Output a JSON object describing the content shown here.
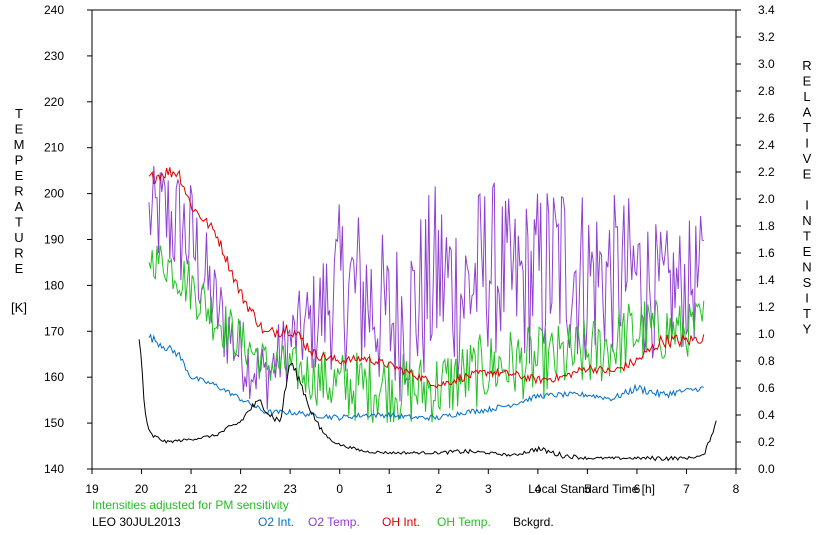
{
  "chart_data": {
    "type": "line",
    "x_ticks": [
      "19",
      "20",
      "21",
      "22",
      "23",
      "0",
      "1",
      "2",
      "3",
      "4",
      "5",
      "6",
      "7",
      "8"
    ],
    "xlim": [
      19,
      32
    ],
    "xlabel": "Local Standard Time [h]",
    "left_axis": {
      "label": "TEMPERATURE",
      "unit": "[K]",
      "ylim": [
        140,
        240
      ],
      "ticks": [
        140,
        150,
        160,
        170,
        180,
        190,
        200,
        210,
        220,
        230,
        240
      ]
    },
    "right_axis": {
      "label": "RELATIVE INTENSITY",
      "ylim": [
        0.0,
        3.4
      ],
      "ticks": [
        "0.0",
        "0.2",
        "0.4",
        "0.6",
        "0.8",
        "1.0",
        "1.2",
        "1.4",
        "1.6",
        "1.8",
        "2.0",
        "2.2",
        "2.4",
        "2.6",
        "2.8",
        "3.0",
        "3.2",
        "3.4"
      ]
    },
    "note": "Intensities adjusted for PM sensitivity",
    "station": "LEO 30JUL2013",
    "legend": [
      {
        "name": "O2 Int.",
        "color": "#0070c8"
      },
      {
        "name": "O2 Temp.",
        "color": "#9040d0"
      },
      {
        "name": "OH Int.",
        "color": "#dd0000"
      },
      {
        "name": "OH Temp.",
        "color": "#22c022"
      },
      {
        "name": "Bckgrd.",
        "color": "#000000"
      }
    ],
    "series": [
      {
        "name": "O2 Temp.",
        "color": "#9040d0",
        "axis": "left",
        "noisy": true,
        "x": [
          20.15,
          20.5,
          21.0,
          21.5,
          22.0,
          22.5,
          23.0,
          23.5,
          24.0,
          24.5,
          25.0,
          25.5,
          26.0,
          26.5,
          27.0,
          27.5,
          28.0,
          28.5,
          29.0,
          29.5,
          30.0,
          30.5,
          31.0,
          31.35
        ],
        "y": [
          195,
          195,
          190,
          175,
          165,
          160,
          168,
          172,
          180,
          178,
          172,
          175,
          182,
          178,
          185,
          180,
          182,
          185,
          182,
          182,
          182,
          178,
          180,
          182
        ],
        "amp": [
          10,
          14,
          14,
          10,
          8,
          8,
          8,
          12,
          18,
          20,
          18,
          20,
          22,
          20,
          20,
          18,
          20,
          22,
          20,
          18,
          18,
          14,
          14,
          14
        ]
      },
      {
        "name": "OH Temp.",
        "color": "#22c022",
        "axis": "left",
        "noisy": true,
        "x": [
          20.15,
          20.5,
          21.0,
          21.5,
          22.0,
          22.5,
          23.0,
          23.5,
          24.0,
          24.5,
          25.0,
          25.5,
          26.0,
          26.5,
          27.0,
          27.5,
          28.0,
          28.5,
          29.0,
          29.5,
          30.0,
          30.5,
          31.0,
          31.35
        ],
        "y": [
          186,
          185,
          180,
          173,
          168,
          163,
          162,
          160,
          158,
          158,
          158,
          157,
          158,
          160,
          162,
          163,
          163,
          164,
          165,
          167,
          170,
          170,
          170,
          172
        ],
        "amp": [
          4,
          5,
          6,
          6,
          5,
          5,
          5,
          6,
          8,
          8,
          8,
          8,
          8,
          8,
          8,
          8,
          8,
          8,
          8,
          8,
          8,
          7,
          6,
          6
        ]
      },
      {
        "name": "OH Int.",
        "color": "#dd0000",
        "axis": "right",
        "noisy": true,
        "x": [
          20.15,
          20.5,
          20.75,
          21.0,
          21.5,
          22.0,
          22.5,
          23.0,
          23.5,
          24.0,
          24.5,
          25.0,
          25.5,
          26.0,
          26.5,
          27.0,
          27.5,
          28.0,
          28.5,
          29.0,
          29.5,
          30.0,
          30.5,
          31.0,
          31.35
        ],
        "y": [
          2.15,
          2.2,
          2.2,
          1.95,
          1.75,
          1.3,
          1.0,
          1.05,
          0.85,
          0.8,
          0.82,
          0.77,
          0.7,
          0.62,
          0.68,
          0.72,
          0.7,
          0.66,
          0.68,
          0.75,
          0.72,
          0.8,
          0.95,
          0.95,
          0.97
        ],
        "amp": [
          0.05,
          0.05,
          0.05,
          0.04,
          0.04,
          0.05,
          0.04,
          0.06,
          0.04,
          0.03,
          0.03,
          0.03,
          0.03,
          0.03,
          0.03,
          0.03,
          0.03,
          0.03,
          0.03,
          0.03,
          0.03,
          0.04,
          0.05,
          0.05,
          0.04
        ]
      },
      {
        "name": "O2 Int.",
        "color": "#0070c8",
        "axis": "right",
        "noisy": true,
        "x": [
          20.15,
          20.5,
          20.75,
          21.0,
          21.5,
          22.0,
          22.5,
          23.0,
          23.5,
          24.0,
          24.5,
          25.0,
          25.5,
          26.0,
          26.5,
          27.0,
          27.5,
          28.0,
          28.5,
          29.0,
          29.5,
          30.0,
          30.5,
          31.0,
          31.35
        ],
        "y": [
          0.98,
          0.9,
          0.85,
          0.68,
          0.62,
          0.52,
          0.42,
          0.42,
          0.4,
          0.38,
          0.4,
          0.4,
          0.38,
          0.38,
          0.42,
          0.44,
          0.48,
          0.54,
          0.55,
          0.55,
          0.52,
          0.6,
          0.55,
          0.58,
          0.6
        ],
        "amp": [
          0.03,
          0.03,
          0.03,
          0.02,
          0.02,
          0.02,
          0.02,
          0.02,
          0.02,
          0.02,
          0.02,
          0.02,
          0.02,
          0.02,
          0.02,
          0.02,
          0.02,
          0.02,
          0.02,
          0.02,
          0.02,
          0.03,
          0.03,
          0.02,
          0.02
        ]
      },
      {
        "name": "Bckgrd.",
        "color": "#000000",
        "axis": "right",
        "noisy": true,
        "x": [
          19.95,
          20.0,
          20.05,
          20.12,
          20.2,
          20.5,
          21.0,
          21.5,
          21.75,
          22.0,
          22.2,
          22.4,
          22.6,
          22.8,
          23.0,
          23.2,
          23.4,
          23.6,
          23.8,
          24.0,
          24.5,
          25.0,
          25.5,
          26.0,
          26.5,
          27.0,
          27.5,
          28.0,
          28.5,
          29.0,
          29.5,
          30.0,
          30.5,
          31.0,
          31.35,
          31.5,
          31.6
        ],
        "y": [
          0.95,
          0.8,
          0.5,
          0.3,
          0.25,
          0.2,
          0.22,
          0.25,
          0.3,
          0.35,
          0.45,
          0.5,
          0.4,
          0.35,
          0.8,
          0.65,
          0.45,
          0.3,
          0.22,
          0.18,
          0.13,
          0.12,
          0.12,
          0.12,
          0.13,
          0.12,
          0.1,
          0.15,
          0.1,
          0.08,
          0.08,
          0.08,
          0.08,
          0.08,
          0.1,
          0.25,
          0.35
        ],
        "amp": [
          0.03,
          0.03,
          0.03,
          0.02,
          0.02,
          0.01,
          0.01,
          0.01,
          0.02,
          0.02,
          0.03,
          0.03,
          0.03,
          0.03,
          0.03,
          0.03,
          0.03,
          0.02,
          0.01,
          0.01,
          0.01,
          0.01,
          0.01,
          0.01,
          0.02,
          0.01,
          0.01,
          0.02,
          0.02,
          0.01,
          0.01,
          0.01,
          0.02,
          0.01,
          0.01,
          0.02,
          0.02
        ]
      }
    ]
  }
}
